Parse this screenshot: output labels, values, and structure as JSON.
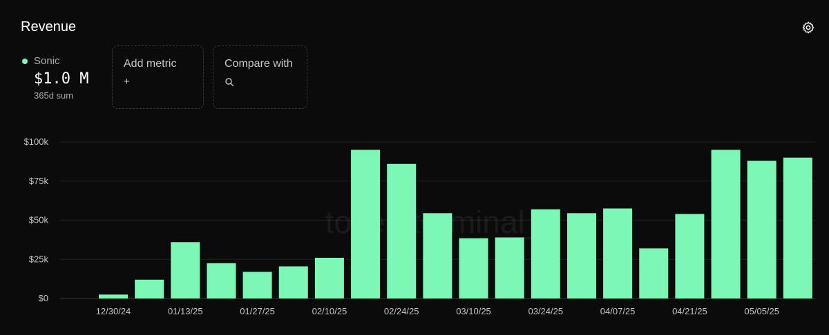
{
  "header": {
    "title": "Revenue",
    "settings_icon": "gear-icon"
  },
  "legend": {
    "series_name": "Sonic",
    "series_color": "#7cf7b6",
    "value": "$1.0 M",
    "sub": "365d sum"
  },
  "add_metric": {
    "label": "Add metric",
    "icon": "+"
  },
  "compare_with": {
    "label": "Compare with",
    "icon": "search-icon"
  },
  "watermark": "token terminal_",
  "chart_data": {
    "type": "bar",
    "y_ticks": [
      {
        "value": 0,
        "label": "$0"
      },
      {
        "value": 25000,
        "label": "$25k"
      },
      {
        "value": 50000,
        "label": "$50k"
      },
      {
        "value": 75000,
        "label": "$75k"
      },
      {
        "value": 100000,
        "label": "$100k"
      }
    ],
    "x_tick_labels": [
      "12/30/24",
      "01/13/25",
      "01/27/25",
      "02/10/25",
      "02/24/25",
      "03/10/25",
      "03/24/25",
      "04/07/25",
      "04/21/25",
      "05/05/25"
    ],
    "ylim": [
      0,
      100000
    ],
    "grid": true,
    "bar_color": "#7cf7b6",
    "series": [
      {
        "values": [
          2500,
          12000,
          36000,
          22500,
          17000,
          20500,
          26000,
          95000,
          86000,
          54500,
          38500,
          39000,
          57000,
          54500,
          57500,
          32000,
          54000,
          95000,
          88000,
          90000
        ]
      }
    ]
  }
}
